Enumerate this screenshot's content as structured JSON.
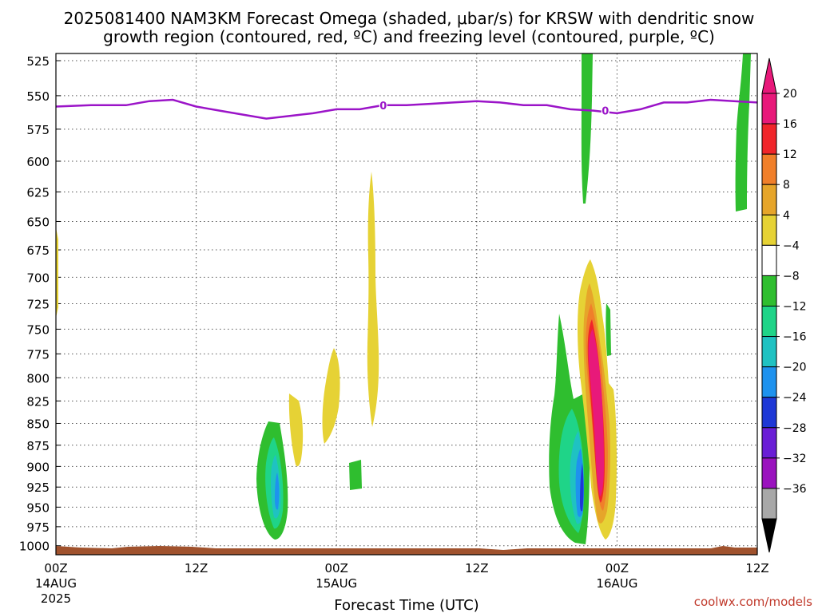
{
  "chart_data": {
    "type": "heatmap",
    "title_line1": "2025081400 NAM3KM Forecast Omega (shaded, μbar/s) for KRSW with dendritic snow",
    "title_line2": "growth region (contoured, red, ºC) and freezing level (contoured, purple, ºC)",
    "xlabel": "Forecast Time (UTC)",
    "x_ticks": [
      {
        "hours": 0,
        "line1": "00Z",
        "line2": "14AUG",
        "line3": "2025"
      },
      {
        "hours": 12,
        "line1": "12Z",
        "line2": "",
        "line3": ""
      },
      {
        "hours": 24,
        "line1": "00Z",
        "line2": "15AUG",
        "line3": ""
      },
      {
        "hours": 36,
        "line1": "12Z",
        "line2": "",
        "line3": ""
      },
      {
        "hours": 48,
        "line1": "00Z",
        "line2": "16AUG",
        "line3": ""
      },
      {
        "hours": 60,
        "line1": "12Z",
        "line2": "",
        "line3": ""
      }
    ],
    "xlim_hours": [
      0,
      60
    ],
    "y_ticks_hpa": [
      525,
      550,
      575,
      600,
      625,
      650,
      675,
      700,
      725,
      750,
      775,
      800,
      825,
      850,
      875,
      900,
      925,
      950,
      975,
      1000
    ],
    "ylim_hpa": [
      520,
      1012
    ],
    "y_log_scale": true,
    "grid": true,
    "freezing_level": {
      "label": "0",
      "color": "#9b14c8",
      "hours": [
        0,
        3,
        6,
        8,
        10,
        12,
        14,
        16,
        18,
        20,
        22,
        24,
        26,
        28,
        30,
        32,
        34,
        36,
        38,
        40,
        42,
        44,
        46,
        48,
        50,
        52,
        54,
        56,
        58,
        60
      ],
      "hpa": [
        558,
        557,
        557,
        554,
        553,
        558,
        561,
        564,
        567,
        565,
        563,
        560,
        560,
        557,
        557,
        556,
        555,
        554,
        555,
        557,
        557,
        560,
        561,
        563,
        560,
        555,
        555,
        553,
        554,
        555
      ]
    },
    "colorbar": {
      "labels": [
        "20",
        "16",
        "12",
        "8",
        "4",
        "−4",
        "−8",
        "−12",
        "−16",
        "−20",
        "−24",
        "−28",
        "−32",
        "−36"
      ],
      "colors": [
        "#e8197a",
        "#f0252a",
        "#f07f2a",
        "#e6a52a",
        "#e6d235",
        "#ffffff",
        "#2fbe2f",
        "#1fd488",
        "#1fc2c2",
        "#1e92ee",
        "#1e38d6",
        "#6a1ed6",
        "#9a12be",
        "#a8a8a8"
      ],
      "top_color": "#e8197a",
      "bottom_color": "#000000"
    },
    "ground_color": "#a0522d",
    "credit": "coolwx.com/models"
  }
}
